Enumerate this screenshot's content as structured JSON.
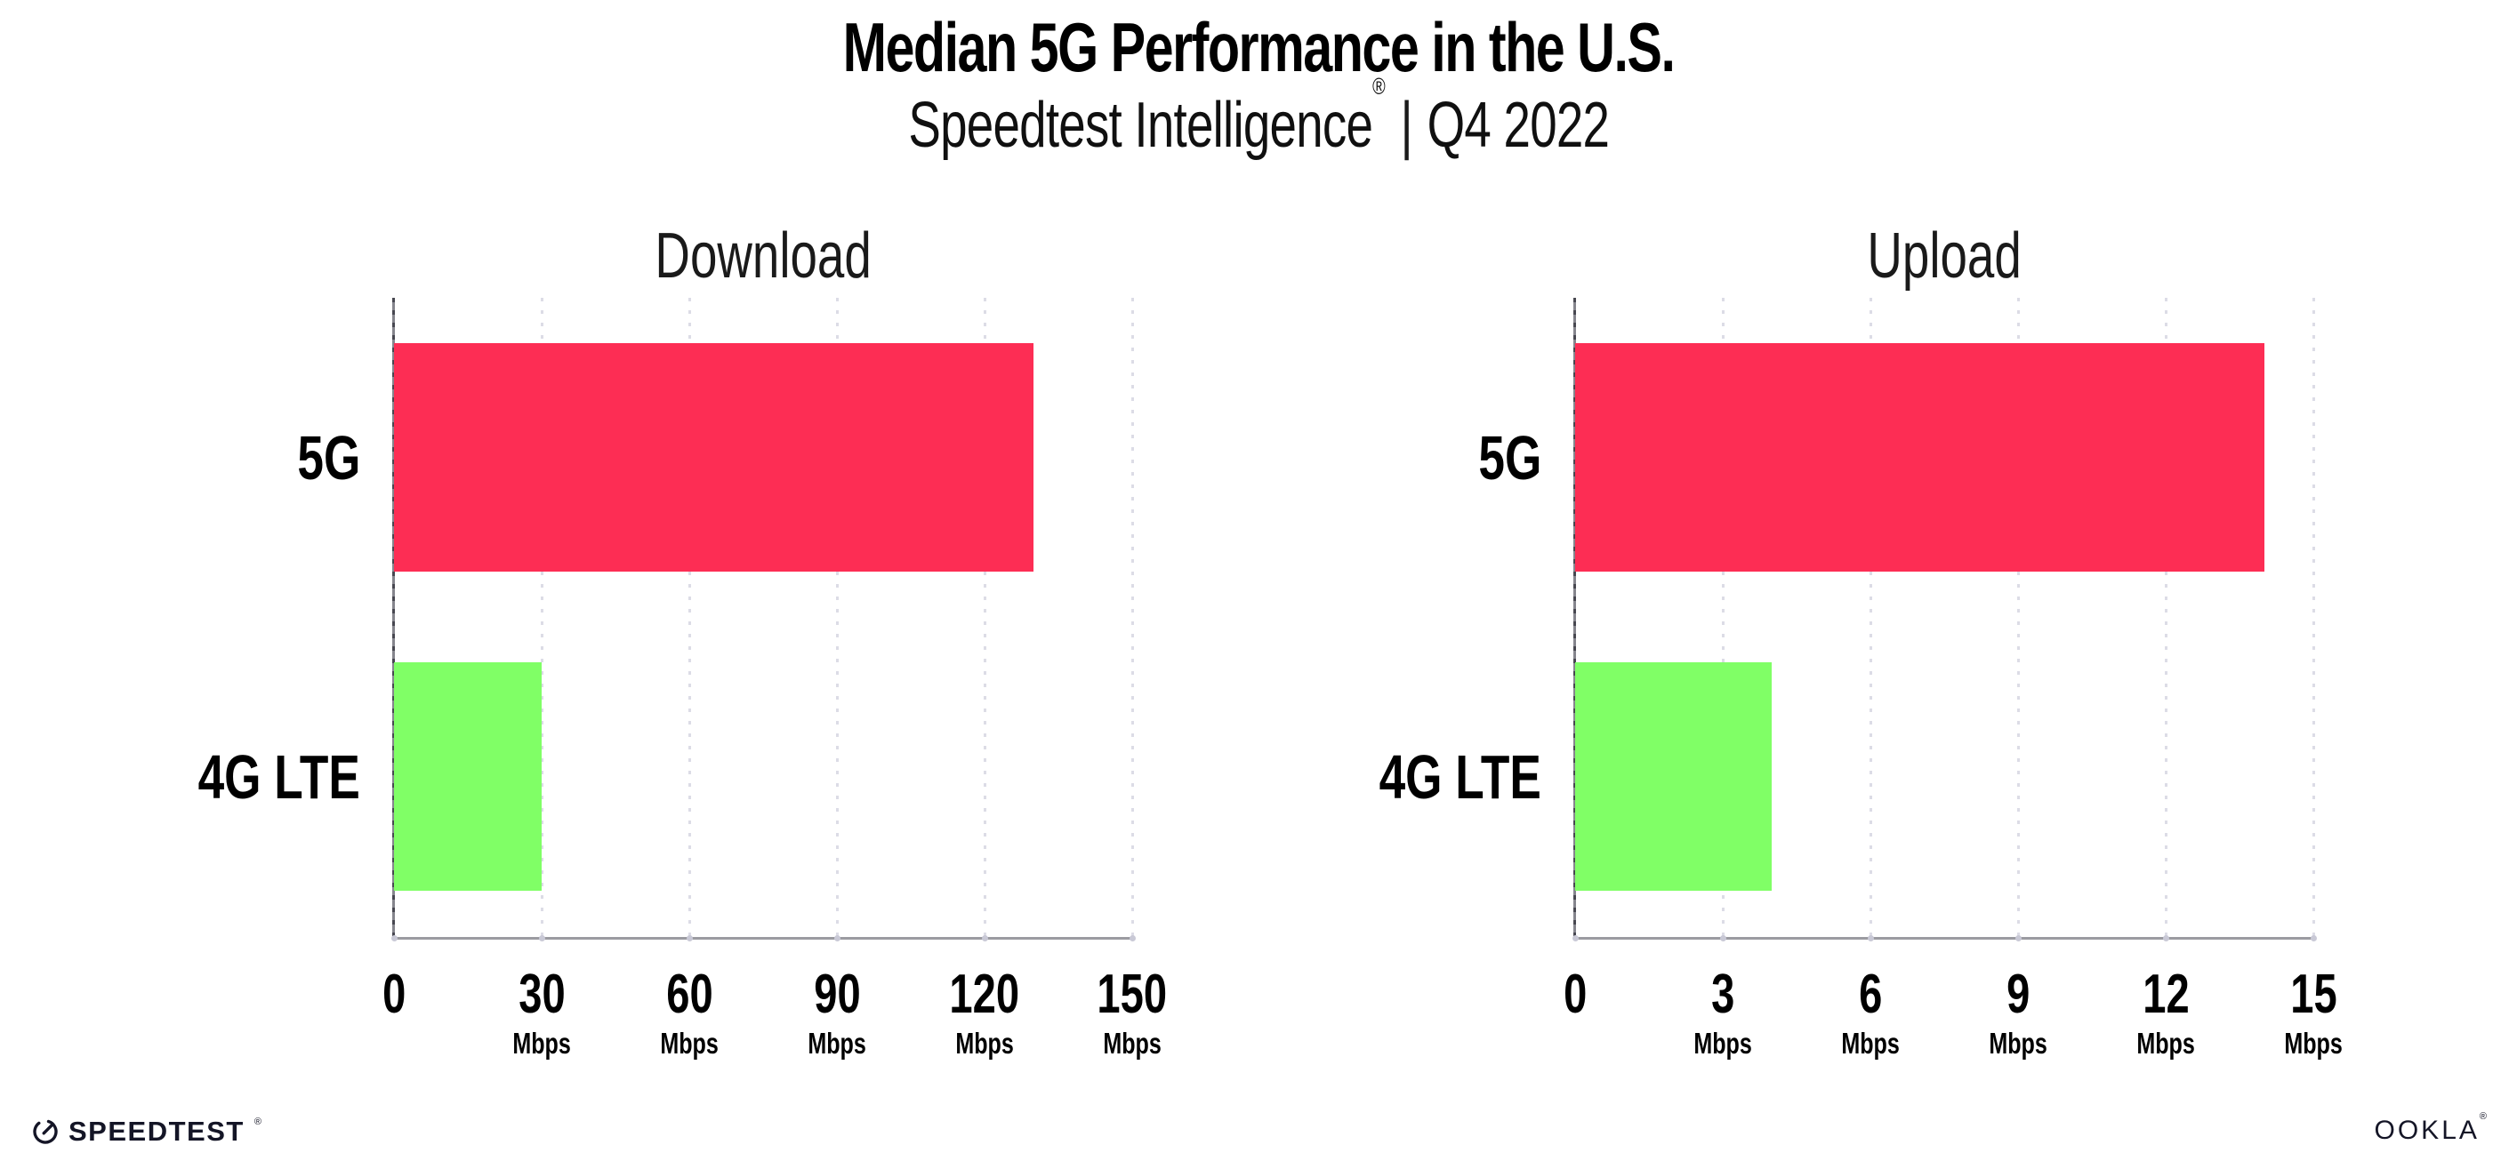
{
  "header": {
    "title": "Median 5G Performance in the U.S.",
    "subtitle_brand": "Speedtest Intelligence",
    "subtitle_registered_mark": "®",
    "subtitle_separator": "|",
    "subtitle_period": "Q4 2022"
  },
  "colors": {
    "background": "#FFFFFF",
    "bar_5g": "#FD2D54",
    "bar_4g_lte": "#80FF66",
    "gridline": "#DCDCE6",
    "tick_dot": "#C9C9D6",
    "x_axis": "#9B9BA1",
    "y_axis_dark": "#474750",
    "y_axis_light": "#85858D",
    "text": "#000000"
  },
  "chart_data": [
    {
      "type": "bar",
      "orientation": "horizontal",
      "title": "Download",
      "categories": [
        "5G",
        "4G LTE"
      ],
      "values": [
        130,
        30
      ],
      "bar_colors": [
        "#FD2D54",
        "#80FF66"
      ],
      "unit": "Mbps",
      "xlim": [
        0,
        150
      ],
      "xticks": [
        0,
        30,
        60,
        90,
        120,
        150
      ],
      "grid": "dotted-vertical",
      "legend": "none"
    },
    {
      "type": "bar",
      "orientation": "horizontal",
      "title": "Upload",
      "categories": [
        "5G",
        "4G LTE"
      ],
      "values": [
        14,
        4
      ],
      "bar_colors": [
        "#FD2D54",
        "#80FF66"
      ],
      "unit": "Mbps",
      "xlim": [
        0,
        15
      ],
      "xticks": [
        0,
        3,
        6,
        9,
        12,
        15
      ],
      "grid": "dotted-vertical",
      "legend": "none"
    }
  ],
  "footer": {
    "speedtest_logo_text": "SPEEDTEST",
    "speedtest_registered_mark": "®",
    "ookla_logo_text": "OOKLA",
    "ookla_registered_mark": "®"
  }
}
